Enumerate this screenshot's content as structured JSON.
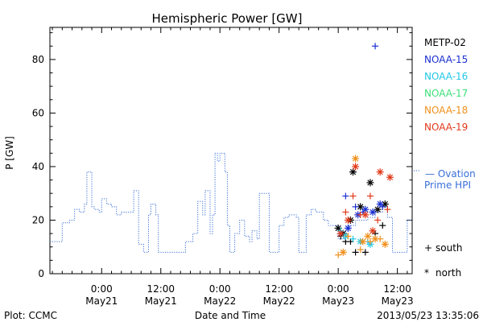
{
  "chart_data": {
    "type": "scatter",
    "title": "Hemispheric Power [GW]",
    "xlabel": "Date and Time",
    "ylabel": "P [GW]",
    "ylim": [
      0,
      92
    ],
    "xlim": [
      "2013-05-20 13:30",
      "2013-05-23 15:00"
    ],
    "y_ticks": [
      "0",
      "20",
      "40",
      "60",
      "80"
    ],
    "x_ticks": [
      {
        "time": "0:00",
        "date": "May21",
        "at": "2013-05-21 00:00"
      },
      {
        "time": "12:00",
        "date": "May21",
        "at": "2013-05-21 12:00"
      },
      {
        "time": "0:00",
        "date": "May22",
        "at": "2013-05-22 00:00"
      },
      {
        "time": "12:00",
        "date": "May22",
        "at": "2013-05-22 12:00"
      },
      {
        "time": "0:00",
        "date": "May23",
        "at": "2013-05-23 00:00"
      },
      {
        "time": "12:00",
        "date": "May23",
        "at": "2013-05-23 12:00"
      }
    ],
    "ovation_line": {
      "name": "Ovation Prime HPI",
      "label_line1": "— Ovation",
      "label_line2": "Prime HPI",
      "color": "#3a6fd8",
      "points": [
        [
          "2013-05-20 13:30",
          12
        ],
        [
          "2013-05-20 16:00",
          19
        ],
        [
          "2013-05-20 17:30",
          20
        ],
        [
          "2013-05-20 18:30",
          24
        ],
        [
          "2013-05-20 19:30",
          23
        ],
        [
          "2013-05-20 20:30",
          26
        ],
        [
          "2013-05-20 21:00",
          38
        ],
        [
          "2013-05-20 22:00",
          25
        ],
        [
          "2013-05-20 22:30",
          24
        ],
        [
          "2013-05-20 23:30",
          23
        ],
        [
          "2013-05-21 00:00",
          28
        ],
        [
          "2013-05-21 01:00",
          26
        ],
        [
          "2013-05-21 02:00",
          25
        ],
        [
          "2013-05-21 03:00",
          22
        ],
        [
          "2013-05-21 04:00",
          23
        ],
        [
          "2013-05-21 05:30",
          23
        ],
        [
          "2013-05-21 06:30",
          31
        ],
        [
          "2013-05-21 07:30",
          11
        ],
        [
          "2013-05-21 08:30",
          8
        ],
        [
          "2013-05-21 09:30",
          22
        ],
        [
          "2013-05-21 10:00",
          26
        ],
        [
          "2013-05-21 11:00",
          22
        ],
        [
          "2013-05-21 11:30",
          8
        ],
        [
          "2013-05-21 14:00",
          8
        ],
        [
          "2013-05-21 16:00",
          8
        ],
        [
          "2013-05-21 17:00",
          12
        ],
        [
          "2013-05-21 18:30",
          15
        ],
        [
          "2013-05-21 19:30",
          27
        ],
        [
          "2013-05-21 20:30",
          22
        ],
        [
          "2013-05-21 21:00",
          31
        ],
        [
          "2013-05-21 22:00",
          15
        ],
        [
          "2013-05-21 22:30",
          22
        ],
        [
          "2013-05-21 23:00",
          45
        ],
        [
          "2013-05-21 23:30",
          42
        ],
        [
          "2013-05-22 00:00",
          45
        ],
        [
          "2013-05-22 01:00",
          38
        ],
        [
          "2013-05-22 01:30",
          18
        ],
        [
          "2013-05-22 02:00",
          8
        ],
        [
          "2013-05-22 03:00",
          15
        ],
        [
          "2013-05-22 04:00",
          20
        ],
        [
          "2013-05-22 05:00",
          14
        ],
        [
          "2013-05-22 06:00",
          12
        ],
        [
          "2013-05-22 06:30",
          16
        ],
        [
          "2013-05-22 07:30",
          13
        ],
        [
          "2013-05-22 08:00",
          30
        ],
        [
          "2013-05-22 09:30",
          30
        ],
        [
          "2013-05-22 10:00",
          8
        ],
        [
          "2013-05-22 11:30",
          8
        ],
        [
          "2013-05-22 12:00",
          18
        ],
        [
          "2013-05-22 13:00",
          21
        ],
        [
          "2013-05-22 14:00",
          22
        ],
        [
          "2013-05-22 15:30",
          21
        ],
        [
          "2013-05-22 16:00",
          8
        ],
        [
          "2013-05-22 17:30",
          22
        ],
        [
          "2013-05-22 18:30",
          24
        ],
        [
          "2013-05-22 19:30",
          23
        ],
        [
          "2013-05-22 21:00",
          20
        ],
        [
          "2013-05-22 22:00",
          18
        ],
        [
          "2013-05-23 00:00",
          13
        ],
        [
          "2013-05-23 01:30",
          14
        ],
        [
          "2013-05-23 02:00",
          18
        ],
        [
          "2013-05-23 03:30",
          20
        ],
        [
          "2013-05-23 05:00",
          20
        ],
        [
          "2013-05-23 06:00",
          21
        ],
        [
          "2013-05-23 07:30",
          23
        ],
        [
          "2013-05-23 09:00",
          25
        ],
        [
          "2013-05-23 10:00",
          21
        ],
        [
          "2013-05-23 11:00",
          8
        ],
        [
          "2013-05-23 13:00",
          8
        ],
        [
          "2013-05-23 14:00",
          20
        ]
      ]
    },
    "series": [
      {
        "name": "METP-02",
        "color": "#000000",
        "south": [
          [
            "2013-05-23 00:30",
            14
          ],
          [
            "2013-05-23 01:30",
            12
          ],
          [
            "2013-05-23 02:30",
            12
          ],
          [
            "2013-05-23 03:30",
            8
          ],
          [
            "2013-05-23 05:30",
            8
          ],
          [
            "2013-05-23 07:30",
            15
          ],
          [
            "2013-05-23 09:00",
            18
          ]
        ],
        "north": [
          [
            "2013-05-23 00:00",
            17
          ],
          [
            "2013-05-23 01:00",
            15
          ],
          [
            "2013-05-23 02:30",
            20
          ],
          [
            "2013-05-23 03:00",
            38
          ],
          [
            "2013-05-23 04:30",
            25
          ],
          [
            "2013-05-23 06:30",
            34
          ],
          [
            "2013-05-23 08:00",
            24
          ],
          [
            "2013-05-23 09:30",
            26
          ]
        ]
      },
      {
        "name": "NOAA-15",
        "color": "#1a2fd0",
        "south": [
          [
            "2013-05-23 01:30",
            29
          ],
          [
            "2013-05-23 03:30",
            25
          ],
          [
            "2013-05-23 05:00",
            23
          ],
          [
            "2013-05-23 07:30",
            85
          ],
          [
            "2013-05-23 09:00",
            25
          ]
        ],
        "north": [
          [
            "2013-05-23 00:30",
            15
          ],
          [
            "2013-05-23 02:00",
            17
          ],
          [
            "2013-05-23 04:00",
            22
          ],
          [
            "2013-05-23 05:30",
            24
          ],
          [
            "2013-05-23 07:00",
            23
          ],
          [
            "2013-05-23 08:30",
            26
          ]
        ]
      },
      {
        "name": "NOAA-16",
        "color": "#22c8e8",
        "south": [
          [
            "2013-05-23 00:30",
            16
          ],
          [
            "2013-05-23 03:00",
            13
          ],
          [
            "2013-05-23 06:00",
            12
          ]
        ],
        "north": [
          [
            "2013-05-23 01:30",
            14
          ],
          [
            "2013-05-23 04:30",
            12
          ],
          [
            "2013-05-23 06:30",
            11
          ]
        ]
      },
      {
        "name": "NOAA-17",
        "color": "#3ee07a",
        "south": [],
        "north": []
      },
      {
        "name": "NOAA-18",
        "color": "#f0901c",
        "south": [
          [
            "2013-05-23 00:00",
            7
          ],
          [
            "2013-05-23 02:00",
            14
          ],
          [
            "2013-05-23 04:30",
            9
          ],
          [
            "2013-05-23 06:30",
            12
          ],
          [
            "2013-05-23 08:30",
            13
          ]
        ],
        "north": [
          [
            "2013-05-23 01:00",
            8
          ],
          [
            "2013-05-23 03:30",
            43
          ],
          [
            "2013-05-23 05:00",
            12
          ],
          [
            "2013-05-23 06:00",
            14
          ],
          [
            "2013-05-23 07:30",
            13
          ],
          [
            "2013-05-23 09:30",
            11
          ]
        ]
      },
      {
        "name": "NOAA-19",
        "color": "#e03a1a",
        "south": [
          [
            "2013-05-23 01:30",
            23
          ],
          [
            "2013-05-23 03:00",
            29
          ],
          [
            "2013-05-23 04:30",
            22
          ],
          [
            "2013-05-23 06:30",
            29
          ],
          [
            "2013-05-23 08:00",
            20
          ],
          [
            "2013-05-23 10:00",
            24
          ]
        ],
        "north": [
          [
            "2013-05-23 00:30",
            15
          ],
          [
            "2013-05-23 02:00",
            20
          ],
          [
            "2013-05-23 03:30",
            40
          ],
          [
            "2013-05-23 05:30",
            22
          ],
          [
            "2013-05-23 07:00",
            16
          ],
          [
            "2013-05-23 08:30",
            38
          ],
          [
            "2013-05-23 10:30",
            36
          ]
        ]
      }
    ],
    "marker_legend": {
      "south": "south",
      "north": "north",
      "south_symbol": "+",
      "north_symbol": "*"
    },
    "footer": {
      "plot_credit": "Plot: CCMC",
      "timestamp": "2013/05/23 13:35:06"
    }
  }
}
